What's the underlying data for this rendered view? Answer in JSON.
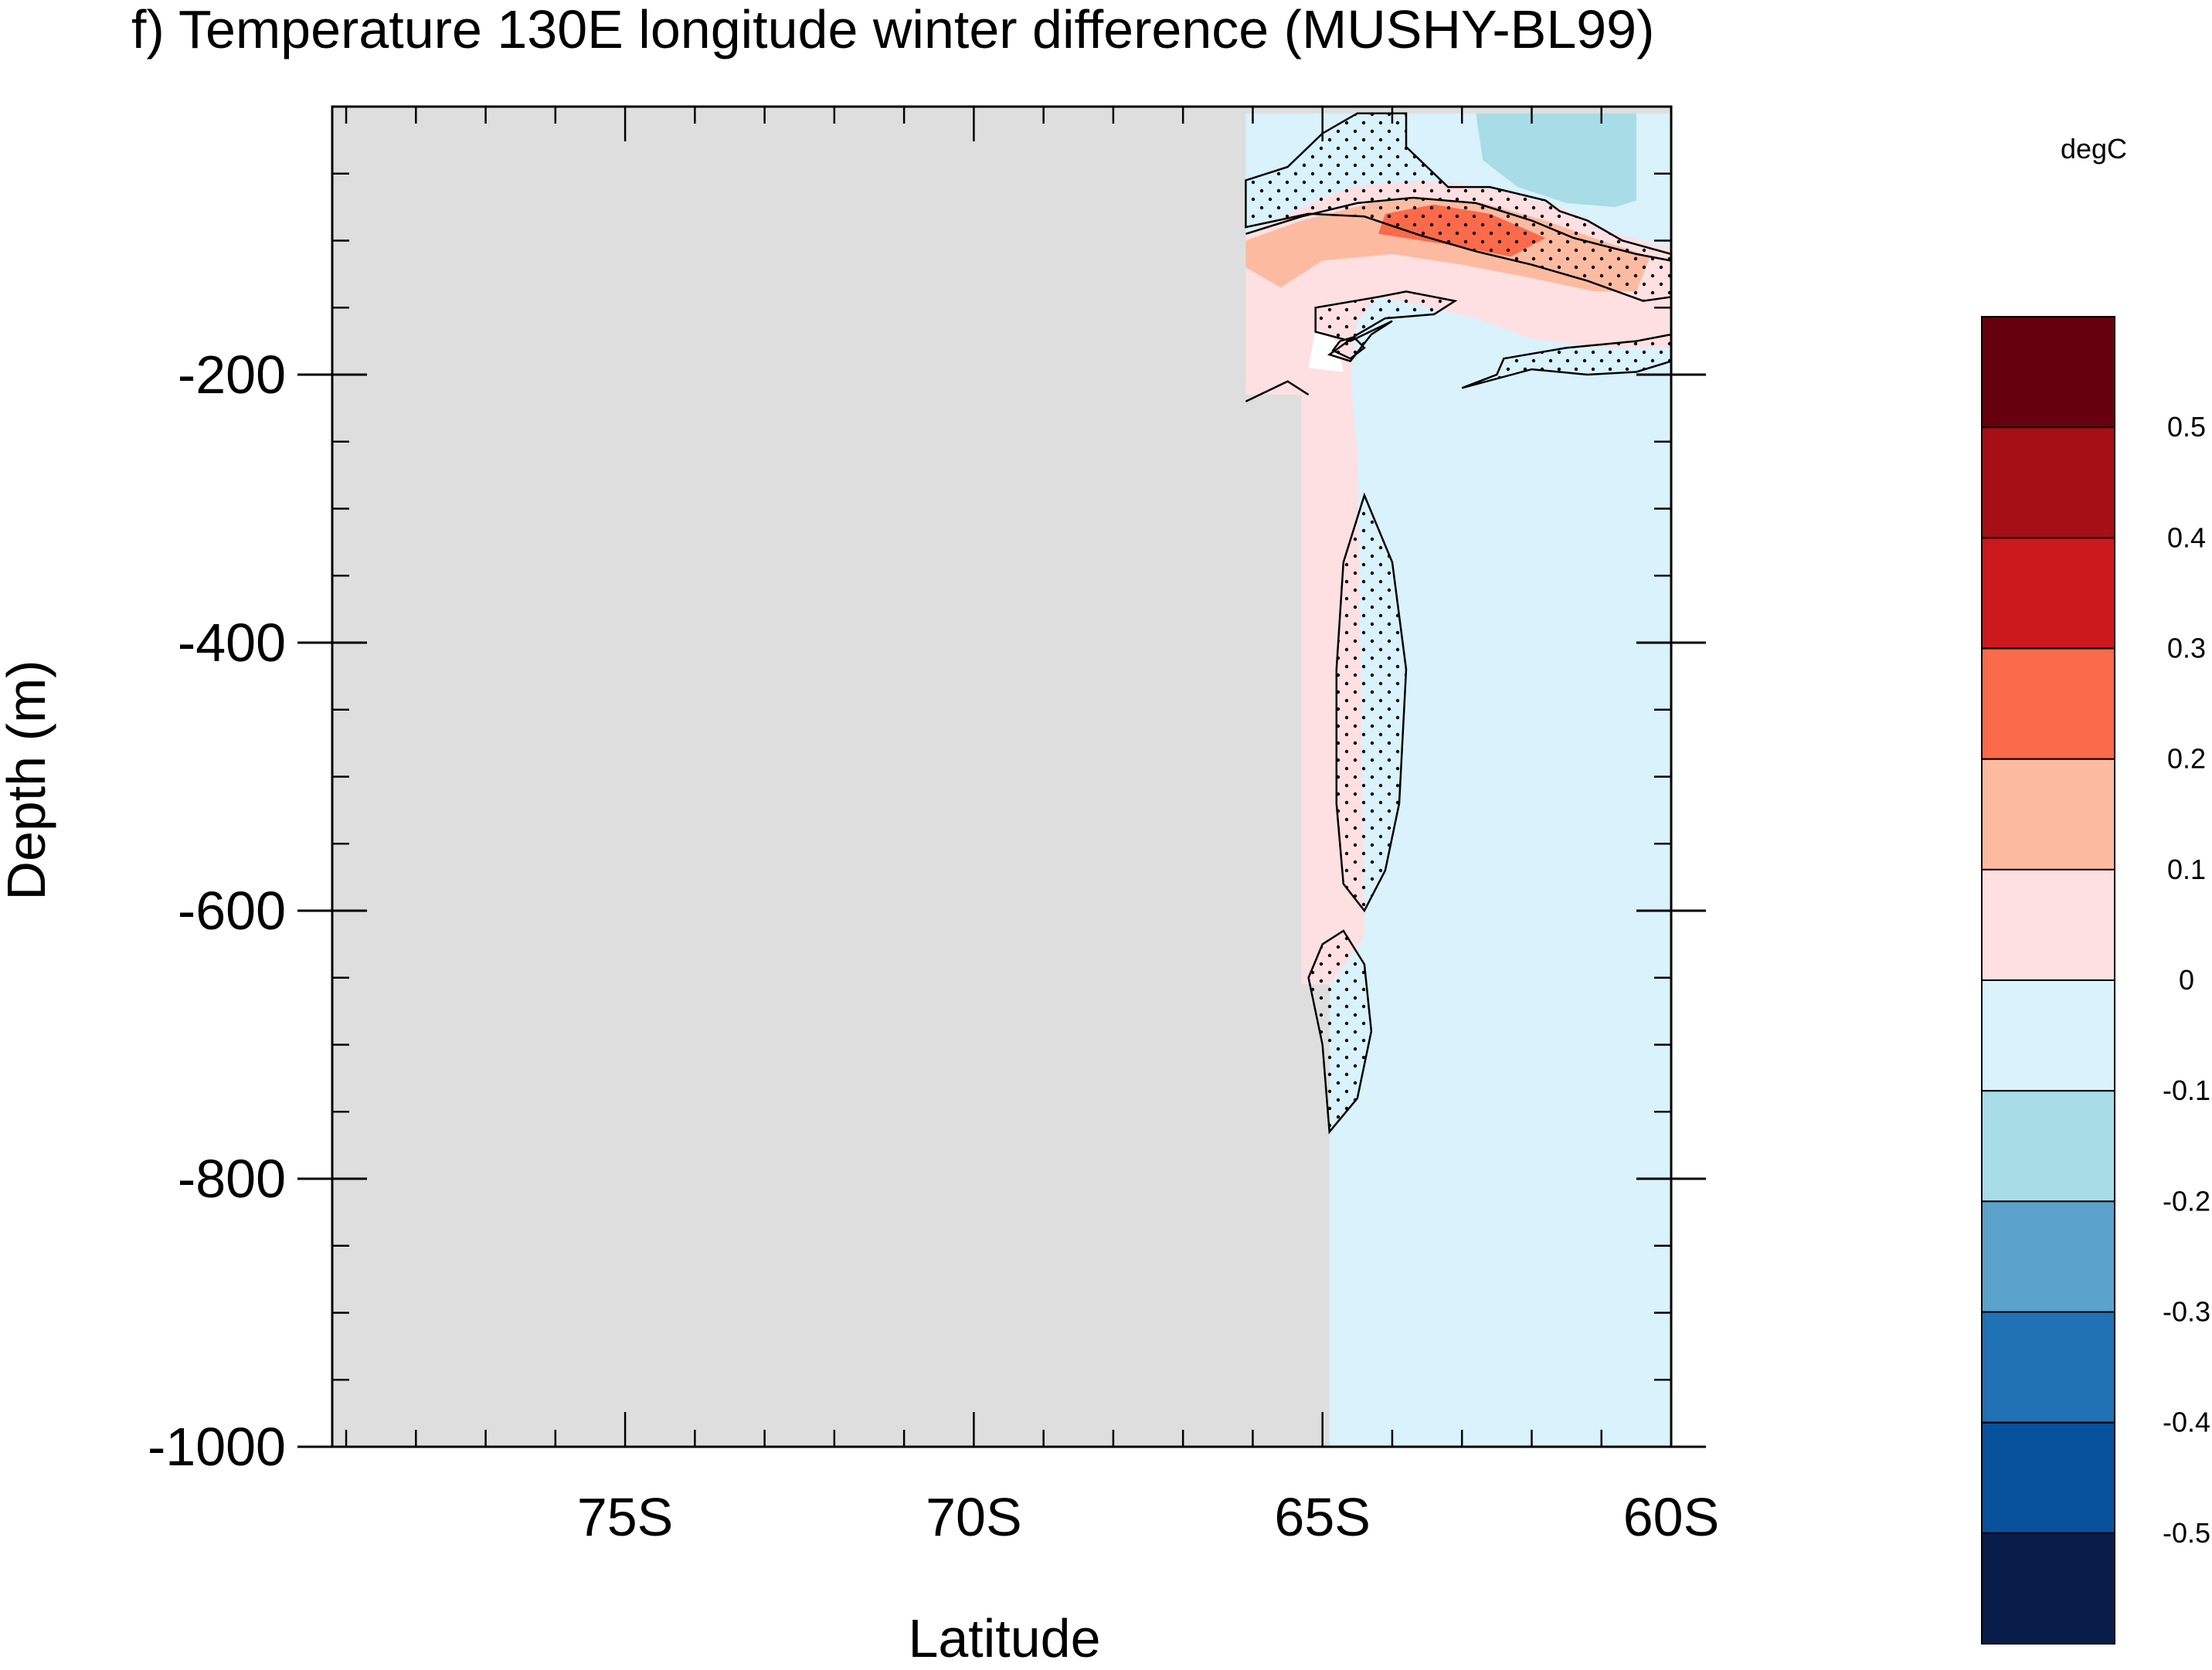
{
  "chart_data": {
    "type": "heatmap",
    "title": "f) Temperature 130E longitude winter difference (MUSHY-BL99)",
    "xlabel": "Latitude",
    "ylabel": "Depth (m)",
    "xlim": [
      -79.2,
      -60
    ],
    "ylim": [
      -1000,
      0
    ],
    "x_ticks": [
      {
        "value": -75,
        "label": "75S"
      },
      {
        "value": -70,
        "label": "70S"
      },
      {
        "value": -65,
        "label": "65S"
      },
      {
        "value": -60,
        "label": "60S"
      }
    ],
    "y_ticks": [
      {
        "value": -200,
        "label": "-200"
      },
      {
        "value": -400,
        "label": "-400"
      },
      {
        "value": -600,
        "label": "-600"
      },
      {
        "value": -800,
        "label": "-800"
      },
      {
        "value": -1000,
        "label": "-1000"
      }
    ],
    "colorbar": {
      "units": "degC",
      "levels": [
        "0.5",
        "0.4",
        "0.3",
        "0.2",
        "0.1",
        "0",
        "-0.1",
        "-0.2",
        "-0.3",
        "-0.4",
        "-0.5"
      ],
      "colors": [
        "#67000d",
        "#a50f15",
        "#cb181d",
        "#fb6a4a",
        "#fcbba1",
        "#fee0e2",
        "#d9f2fc",
        "#a8dce7",
        "#5ba2cd",
        "#2171b5",
        "#08519c",
        "#081d49"
      ]
    },
    "land_color": "#dedede",
    "field": [
      {
        "name": "weak-cooling",
        "range": [
          -0.1,
          0
        ],
        "color": "#d9f2fc",
        "points": [
          [
            -66.1,
            -5
          ],
          [
            -60,
            -5
          ],
          [
            -60,
            -1000
          ],
          [
            -64.9,
            -1000
          ],
          [
            -64.9,
            -205
          ],
          [
            -66.1,
            -205
          ]
        ]
      },
      {
        "name": "weak-warming-band",
        "range": [
          0,
          0.1
        ],
        "color": "#fee0e2",
        "points": [
          [
            -66.1,
            -95
          ],
          [
            -65.3,
            -75
          ],
          [
            -64.6,
            -60
          ],
          [
            -63.6,
            -55
          ],
          [
            -62.6,
            -60
          ],
          [
            -61.6,
            -75
          ],
          [
            -60.8,
            -95
          ],
          [
            -60,
            -105
          ],
          [
            -60,
            -180
          ],
          [
            -61,
            -180
          ],
          [
            -62,
            -173
          ],
          [
            -62.8,
            -158
          ],
          [
            -63.6,
            -148
          ],
          [
            -64.2,
            -142
          ],
          [
            -64.5,
            -160
          ],
          [
            -64.6,
            -200
          ],
          [
            -64.5,
            -260
          ],
          [
            -64.4,
            -620
          ],
          [
            -64.9,
            -655
          ],
          [
            -65.3,
            -655
          ],
          [
            -65.3,
            -215
          ],
          [
            -66.1,
            -215
          ]
        ]
      },
      {
        "name": "moderate-warming-band",
        "range": [
          0.1,
          0.2
        ],
        "color": "#fcbba1",
        "points": [
          [
            -66.1,
            -100
          ],
          [
            -65.3,
            -85
          ],
          [
            -64.3,
            -72
          ],
          [
            -63.5,
            -68
          ],
          [
            -62.7,
            -72
          ],
          [
            -61.8,
            -85
          ],
          [
            -61,
            -100
          ],
          [
            -60.3,
            -112
          ],
          [
            -60.5,
            -138
          ],
          [
            -61.1,
            -138
          ],
          [
            -62,
            -128
          ],
          [
            -63,
            -118
          ],
          [
            -64,
            -110
          ],
          [
            -65,
            -115
          ],
          [
            -65.6,
            -135
          ],
          [
            -66.1,
            -120
          ]
        ]
      },
      {
        "name": "strong-warming-core",
        "range": [
          0.2,
          0.3
        ],
        "color": "#fb6a4a",
        "points": [
          [
            -64.1,
            -80
          ],
          [
            -63.4,
            -73
          ],
          [
            -62.6,
            -80
          ],
          [
            -61.8,
            -98
          ],
          [
            -62.3,
            -112
          ],
          [
            -63.2,
            -103
          ],
          [
            -64.2,
            -95
          ]
        ]
      },
      {
        "name": "cooling-patch",
        "range": [
          -0.2,
          -0.1
        ],
        "color": "#a8dce7",
        "points": [
          [
            -62.8,
            -5
          ],
          [
            -60.5,
            -5
          ],
          [
            -60.5,
            -70
          ],
          [
            -60.8,
            -75
          ],
          [
            -61.5,
            -72
          ],
          [
            -62.2,
            -60
          ],
          [
            -62.7,
            -40
          ]
        ]
      },
      {
        "name": "white-patch",
        "range": [],
        "color": "#ffffff",
        "points": [
          [
            -65.1,
            -165
          ],
          [
            -64.8,
            -175
          ],
          [
            -64.7,
            -198
          ],
          [
            -65.2,
            -195
          ]
        ]
      }
    ],
    "significance_regions": [
      {
        "name": "sig-surface",
        "points": [
          [
            -66.1,
            -55
          ],
          [
            -65.5,
            -45
          ],
          [
            -65,
            -20
          ],
          [
            -64.5,
            -5
          ],
          [
            -63.8,
            -5
          ],
          [
            -63.8,
            -30
          ],
          [
            -63.2,
            -60
          ],
          [
            -62.6,
            -60
          ],
          [
            -61.8,
            -70
          ],
          [
            -61.6,
            -78
          ],
          [
            -61.2,
            -85
          ],
          [
            -60.7,
            -100
          ],
          [
            -60,
            -110
          ],
          [
            -60,
            -142
          ],
          [
            -60.4,
            -145
          ],
          [
            -61.2,
            -130
          ],
          [
            -62,
            -118
          ],
          [
            -62.8,
            -108
          ],
          [
            -63.6,
            -96
          ],
          [
            -64.4,
            -82
          ],
          [
            -65.2,
            -80
          ],
          [
            -66.1,
            -90
          ]
        ]
      },
      {
        "name": "sig-hook",
        "points": [
          [
            -64.2,
            -142
          ],
          [
            -63.8,
            -138
          ],
          [
            -63.1,
            -145
          ],
          [
            -63.4,
            -155
          ],
          [
            -64.1,
            -158
          ],
          [
            -64.5,
            -170
          ],
          [
            -64.9,
            -185
          ],
          [
            -64.6,
            -190
          ],
          [
            -64.3,
            -170
          ],
          [
            -64.0,
            -160
          ],
          [
            -64.6,
            -175
          ],
          [
            -65.1,
            -168
          ],
          [
            -65.1,
            -150
          ]
        ]
      },
      {
        "name": "sig-lower-band",
        "points": [
          [
            -62.4,
            -188
          ],
          [
            -61.5,
            -180
          ],
          [
            -60.5,
            -175
          ],
          [
            -60,
            -170
          ],
          [
            -60,
            -190
          ],
          [
            -60.5,
            -198
          ],
          [
            -61.2,
            -200
          ],
          [
            -62.0,
            -196
          ],
          [
            -63.0,
            -210
          ],
          [
            -62.5,
            -200
          ]
        ]
      },
      {
        "name": "sig-deep-tongue",
        "points": [
          [
            -64.4,
            -290
          ],
          [
            -64.0,
            -340
          ],
          [
            -63.8,
            -420
          ],
          [
            -63.9,
            -520
          ],
          [
            -64.1,
            -570
          ],
          [
            -64.4,
            -600
          ],
          [
            -64.7,
            -580
          ],
          [
            -64.8,
            -520
          ],
          [
            -64.8,
            -420
          ],
          [
            -64.7,
            -340
          ]
        ]
      },
      {
        "name": "sig-deepest-tongue",
        "points": [
          [
            -64.7,
            -615
          ],
          [
            -65.0,
            -625
          ],
          [
            -65.2,
            -650
          ],
          [
            -65.0,
            -700
          ],
          [
            -64.9,
            -765
          ],
          [
            -64.5,
            -740
          ],
          [
            -64.3,
            -690
          ],
          [
            -64.4,
            -640
          ]
        ]
      }
    ],
    "contour_lines": [
      {
        "name": "zero-contour-upper-ridge",
        "points": [
          [
            -66.1,
            -95
          ],
          [
            -65.3,
            -82
          ],
          [
            -64.5,
            -72
          ],
          [
            -63.7,
            -68
          ],
          [
            -62.8,
            -72
          ],
          [
            -62,
            -85
          ],
          [
            -61.4,
            -98
          ],
          [
            -60.5,
            -110
          ],
          [
            -60,
            -115
          ]
        ]
      },
      {
        "name": "zero-contour-lower-ridge",
        "points": [
          [
            -66.1,
            -220
          ],
          [
            -65.5,
            -205
          ],
          [
            -65.2,
            -215
          ]
        ]
      },
      {
        "name": "zero-contour-small-loop",
        "points": [
          [
            -64.75,
            -175
          ],
          [
            -64.55,
            -172
          ],
          [
            -64.4,
            -180
          ],
          [
            -64.6,
            -188
          ],
          [
            -64.85,
            -182
          ],
          [
            -64.75,
            -175
          ]
        ]
      }
    ]
  }
}
